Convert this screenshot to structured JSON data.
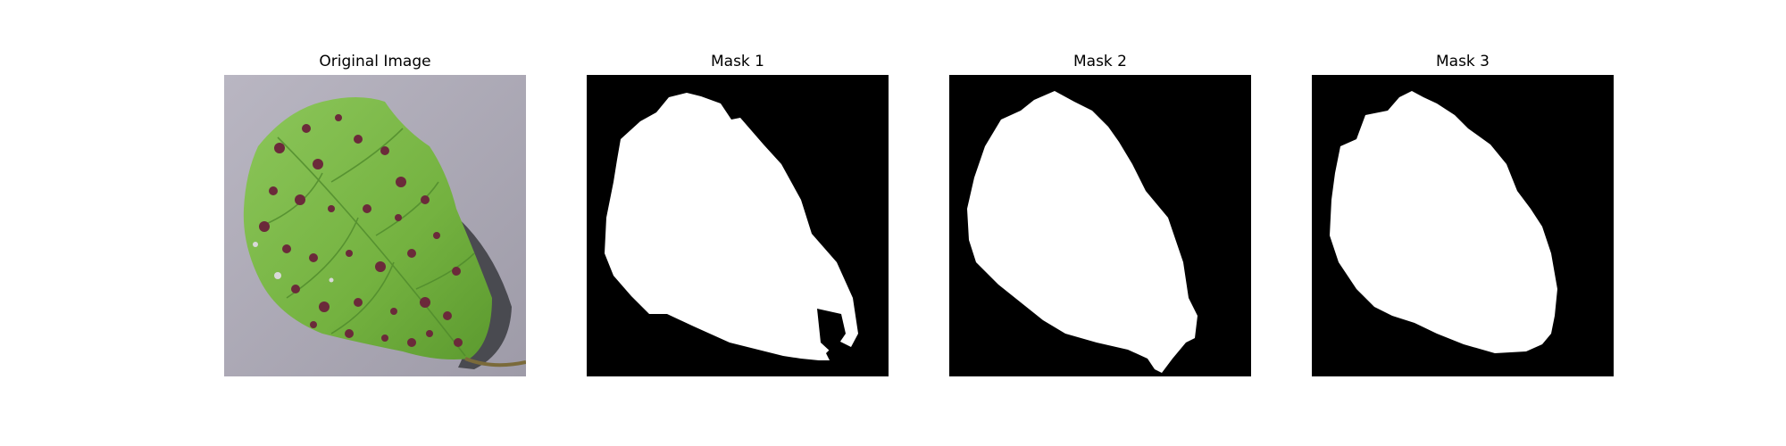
{
  "figure": {
    "panels": [
      {
        "title": "Original Image"
      },
      {
        "title": "Mask 1"
      },
      {
        "title": "Mask 2"
      },
      {
        "title": "Mask 3"
      }
    ]
  },
  "colors": {
    "background": "#ffffff",
    "mask_background": "#000000",
    "mask_foreground": "#ffffff",
    "ground": "#a9a6b3",
    "leaf_green": "#7ab844",
    "leaf_dark_green": "#4f8a2c",
    "leaf_spot": "#6b2a3a",
    "shadow": "#2e2f33"
  }
}
